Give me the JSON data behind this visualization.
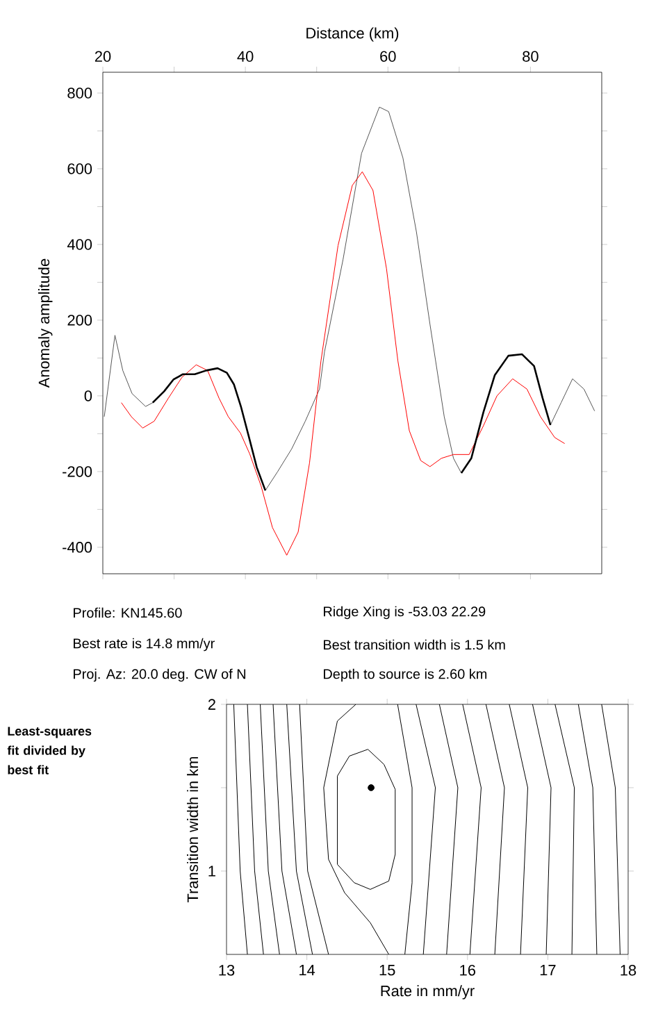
{
  "chart_data": [
    {
      "type": "line",
      "xlabel": "Distance (km)",
      "ylabel": "Anomaly amplitude",
      "xlim": [
        20,
        90
      ],
      "xticks": [
        20,
        {
          "value": 30,
          "label": null
        },
        40,
        {
          "value": 50,
          "label": null
        },
        60,
        {
          "value": 70,
          "label": null
        },
        80
      ],
      "ylim": [
        -470,
        855
      ],
      "yticks": [
        -400,
        {
          "value": -300,
          "label": null
        },
        -200,
        {
          "value": -100,
          "label": null
        },
        0,
        {
          "value": 100,
          "label": null
        },
        200,
        {
          "value": 300,
          "label": null
        },
        400,
        {
          "value": 500,
          "label": null
        },
        600,
        {
          "value": 700,
          "label": null
        },
        800
      ],
      "series": [
        {
          "color": "#555555",
          "x": [
            20.2,
            21.7,
            22.8,
            24.1,
            26.0,
            27.0,
            28.6,
            29.9,
            31.2,
            32.9,
            34.5,
            36.1,
            37.4,
            38.4,
            39.4,
            40.6,
            41.6,
            42.8,
            44.5,
            46.5,
            48.4,
            50.4,
            51.1,
            53.7,
            56.3,
            58.8,
            60.1,
            62.1,
            64.0,
            65.9,
            67.9,
            69.2,
            70.3,
            71.7,
            73.4,
            75.0,
            76.9,
            78.8,
            80.5,
            81.7,
            82.8,
            84.3,
            85.9,
            87.5,
            89.0
          ],
          "values": [
            -55,
            160,
            67,
            6,
            -28,
            -18,
            12,
            43,
            57,
            57,
            67,
            73,
            61,
            30,
            -30,
            -116,
            -189,
            -250,
            -201,
            -140,
            -67,
            18,
            116,
            360,
            641,
            763,
            751,
            629,
            433,
            189,
            -55,
            -165,
            -204,
            -165,
            -43,
            55,
            106,
            110,
            79,
            -6,
            -77,
            -18,
            45,
            18,
            -40
          ]
        },
        {
          "color": "#ff0000",
          "x": [
            22.6,
            24.0,
            25.6,
            27.2,
            29.2,
            31.1,
            33.1,
            34.7,
            36.3,
            37.6,
            39.3,
            40.6,
            42.2,
            43.8,
            45.8,
            47.4,
            49.0,
            50.6,
            53.0,
            55.0,
            56.4,
            57.9,
            59.8,
            61.4,
            63.0,
            64.6,
            65.9,
            67.5,
            69.2,
            71.4,
            73.4,
            75.3,
            77.5,
            79.5,
            81.4,
            83.4,
            84.8
          ],
          "values": [
            -18,
            -55,
            -85,
            -67,
            -6,
            49,
            82,
            67,
            -6,
            -55,
            -98,
            -153,
            -238,
            -348,
            -421,
            -360,
            -177,
            92,
            397,
            556,
            592,
            543,
            336,
            92,
            -92,
            -171,
            -187,
            -165,
            -155,
            -155,
            -79,
            0,
            45,
            18,
            -55,
            -110,
            -126
          ]
        },
        {
          "color": "#000000",
          "x": [
            27.0,
            28.6,
            29.9,
            31.2,
            32.9,
            34.5,
            36.1,
            37.4,
            38.4,
            39.4,
            40.6,
            41.6,
            42.8
          ],
          "values": [
            -18,
            12,
            43,
            57,
            57,
            67,
            73,
            61,
            30,
            -30,
            -116,
            -189,
            -250
          ]
        },
        {
          "color": "#000000",
          "x": [
            70.3,
            71.7,
            73.4,
            75.0,
            76.9,
            78.8,
            80.5,
            81.7,
            82.8
          ],
          "values": [
            -204,
            -165,
            -43,
            55,
            106,
            110,
            79,
            -6,
            -77
          ]
        }
      ],
      "annotations": [
        "Profile: KN145.60",
        "Best rate is 14.8 mm/yr",
        "Proj. Az: 20.0 deg. CW of N",
        "Ridge Xing is -53.03 22.29",
        "Best transition width is 1.5 km",
        "Depth to source is   2.60 km"
      ]
    },
    {
      "type": "line",
      "xlabel": "Rate in mm/yr",
      "ylabel": "Transition width in km",
      "xlim": [
        13,
        18
      ],
      "xticks": [
        13,
        14,
        15,
        16,
        17,
        18
      ],
      "ylim": [
        0.5,
        2
      ],
      "yticks": [
        1,
        {
          "value": 1.5,
          "label": null
        },
        2
      ],
      "series": [
        {
          "color": "#000000",
          "x": [
            13.09,
            13.17,
            13.26
          ],
          "values": [
            2,
            1,
            0.5
          ]
        },
        {
          "color": "#000000",
          "x": [
            13.26,
            13.35,
            13.46
          ],
          "values": [
            2,
            1,
            0.5
          ]
        },
        {
          "color": "#000000",
          "x": [
            13.42,
            13.52,
            13.66
          ],
          "values": [
            2,
            1,
            0.5
          ]
        },
        {
          "color": "#000000",
          "x": [
            13.58,
            13.69,
            13.87
          ],
          "values": [
            2,
            1,
            0.5
          ]
        },
        {
          "color": "#000000",
          "x": [
            13.75,
            13.87,
            14.07
          ],
          "values": [
            2,
            1,
            0.5
          ]
        },
        {
          "color": "#000000",
          "x": [
            13.91,
            14.01,
            14.27
          ],
          "values": [
            2,
            1,
            0.5
          ]
        },
        {
          "color": "#000000",
          "x": [
            14.61,
            14.38,
            14.21,
            14.27,
            14.47,
            14.79,
            15.02
          ],
          "values": [
            2.0,
            1.9,
            1.5,
            1.07,
            0.87,
            0.69,
            0.5
          ]
        },
        {
          "color": "#000000",
          "x": [
            14.76,
            14.53,
            14.38,
            14.38,
            14.59,
            14.79
          ],
          "values": [
            1.73,
            1.69,
            1.57,
            1.04,
            0.93,
            0.89
          ]
        },
        {
          "color": "#000000",
          "x": [
            14.79,
            15.02,
            15.1,
            15.1,
            14.96,
            14.76
          ],
          "values": [
            0.89,
            0.94,
            1.1,
            1.49,
            1.64,
            1.73
          ]
        },
        {
          "color": "#000000",
          "x": [
            15.13,
            15.31,
            15.31,
            15.22
          ],
          "values": [
            2.0,
            1.5,
            0.93,
            0.5
          ]
        },
        {
          "color": "#000000",
          "x": [
            15.36,
            15.6,
            15.45
          ],
          "values": [
            2,
            1.5,
            0.5
          ]
        },
        {
          "color": "#000000",
          "x": [
            15.65,
            15.88,
            15.74
          ],
          "values": [
            2,
            1.5,
            0.5
          ]
        },
        {
          "color": "#000000",
          "x": [
            15.94,
            16.17,
            16.03
          ],
          "values": [
            2,
            1.5,
            0.5
          ]
        },
        {
          "color": "#000000",
          "x": [
            16.23,
            16.46,
            16.34
          ],
          "values": [
            2,
            1.5,
            0.5
          ]
        },
        {
          "color": "#000000",
          "x": [
            16.52,
            16.75,
            16.66
          ],
          "values": [
            2,
            1.5,
            0.5
          ]
        },
        {
          "color": "#000000",
          "x": [
            16.81,
            17.04,
            16.98
          ],
          "values": [
            2,
            1.5,
            0.5
          ]
        },
        {
          "color": "#000000",
          "x": [
            17.09,
            17.33,
            17.3
          ],
          "values": [
            2,
            1.5,
            0.5
          ]
        },
        {
          "color": "#000000",
          "x": [
            17.38,
            17.56,
            17.61
          ],
          "values": [
            2,
            1.5,
            0.5
          ]
        },
        {
          "color": "#000000",
          "x": [
            17.67,
            17.84,
            17.9
          ],
          "values": [
            2,
            1.5,
            0.5
          ]
        },
        {
          "type": "scatter",
          "marker": "circle",
          "color": "#000000",
          "x": [
            14.8
          ],
          "values": [
            1.5
          ]
        }
      ],
      "annotations": [
        "**Least-squares fit divided by best fit**"
      ]
    }
  ]
}
